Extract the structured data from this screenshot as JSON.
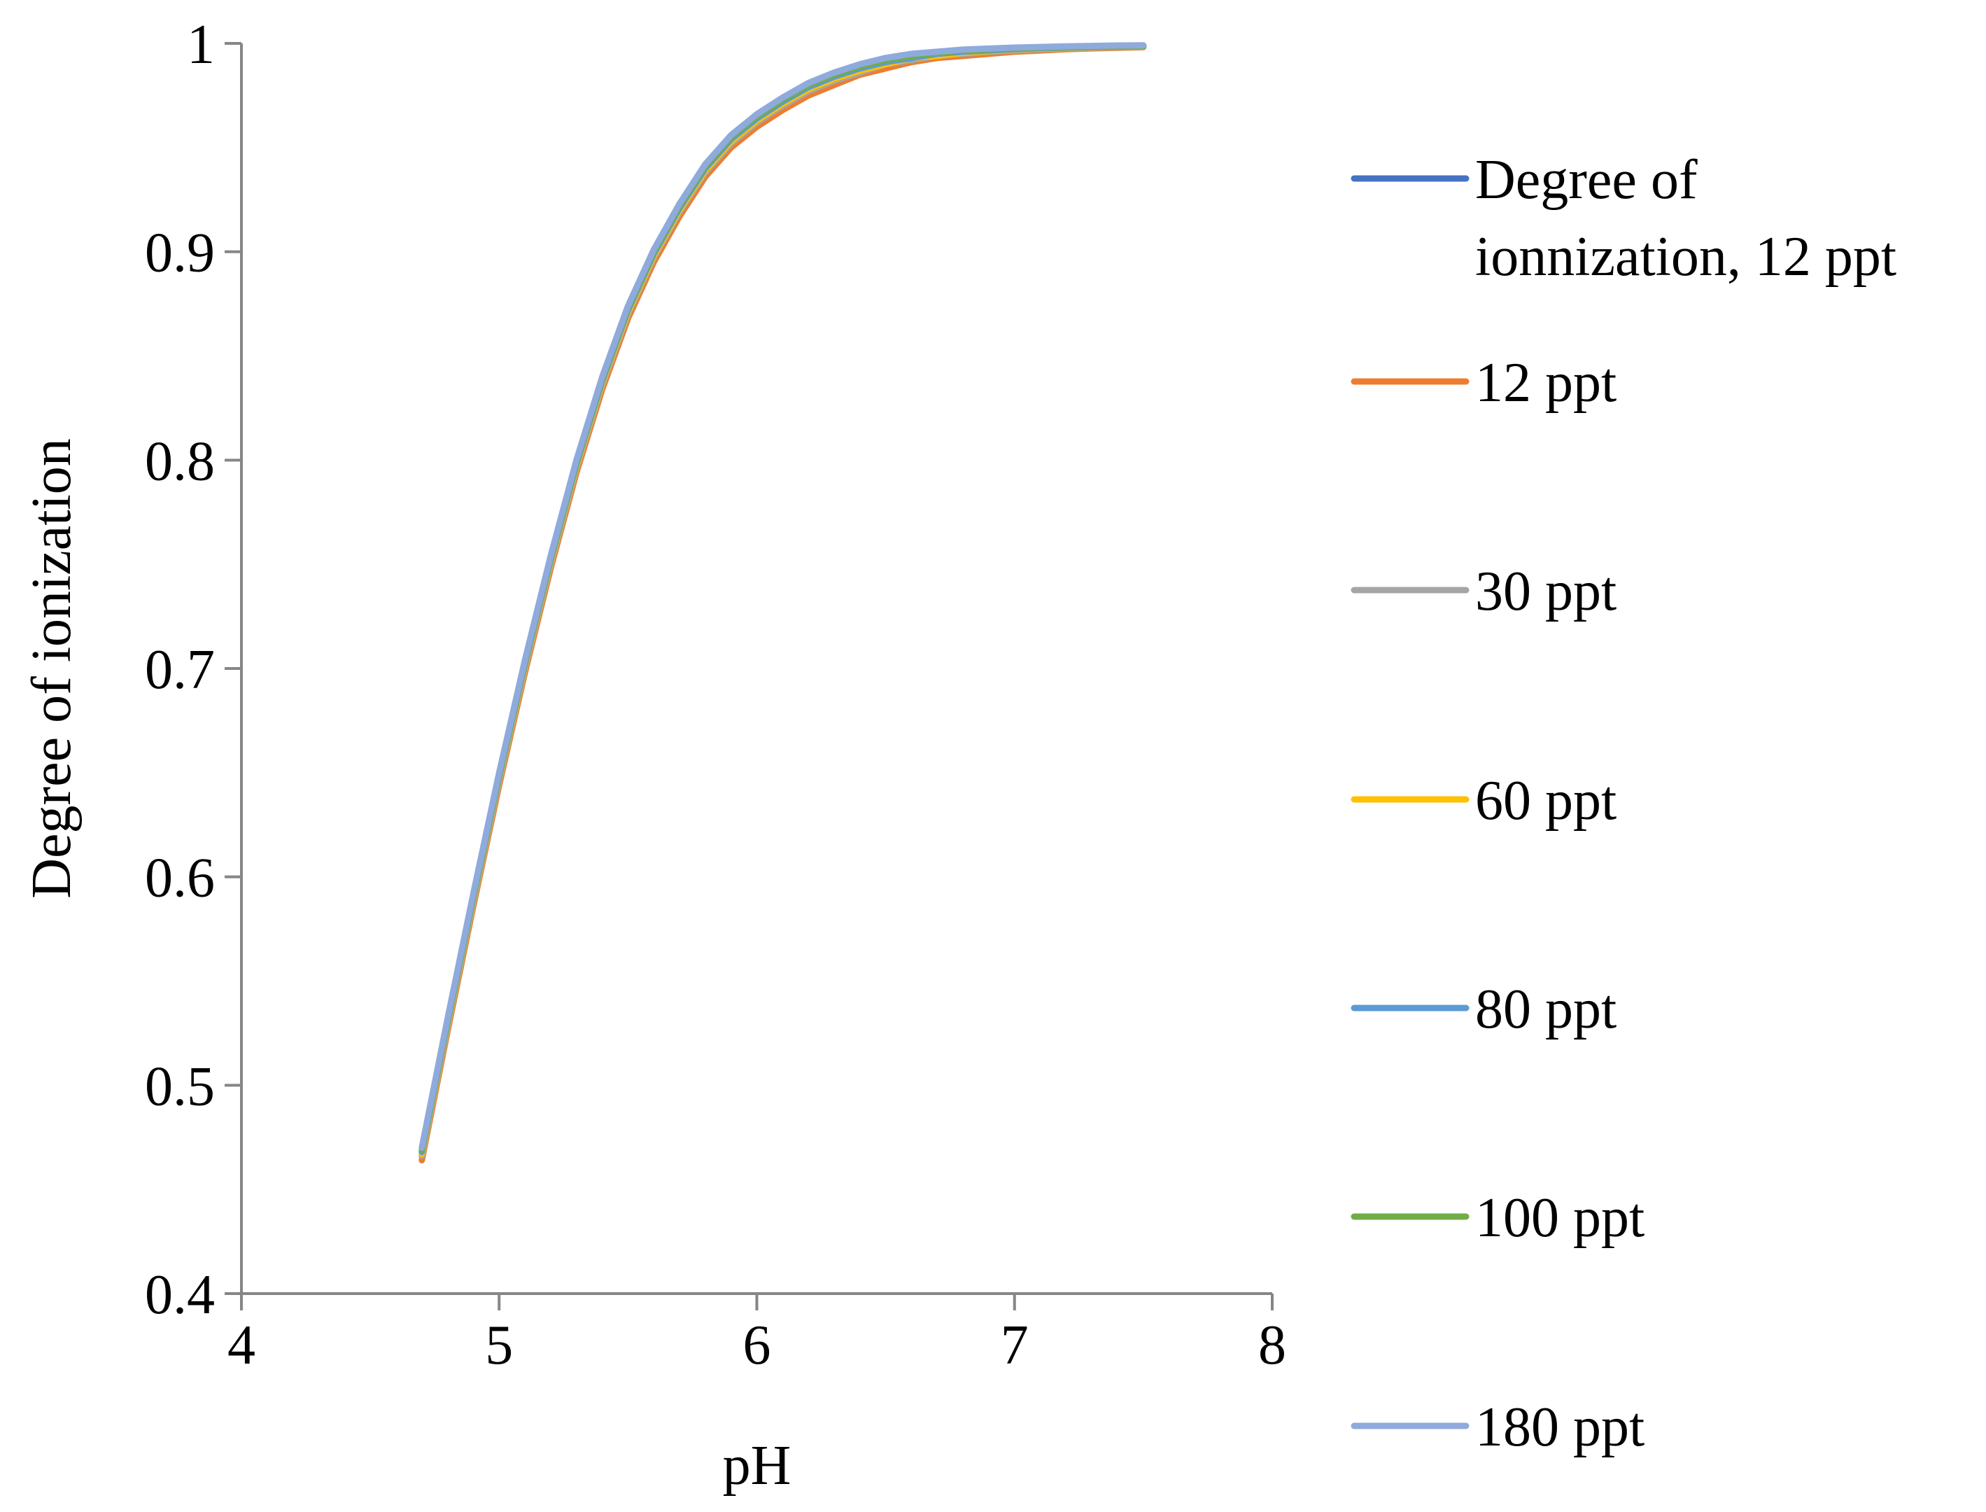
{
  "chart_data": {
    "type": "line",
    "title": "",
    "xlabel": "pH",
    "ylabel": "Degree of ionization",
    "xlim": [
      4,
      8
    ],
    "ylim": [
      0.4,
      1
    ],
    "xticks": [
      4,
      5,
      6,
      7,
      8
    ],
    "yticks": [
      0.4,
      0.5,
      0.6,
      0.7,
      0.8,
      0.9,
      1
    ],
    "ytick_labels": [
      "0.4",
      "0.5",
      "0.6",
      "0.7",
      "0.8",
      "0.9",
      "1"
    ],
    "xtick_labels": [
      "4",
      "5",
      "6",
      "7",
      "8"
    ],
    "grid": false,
    "legend_position": "right",
    "x": [
      4.7,
      4.8,
      4.9,
      5.0,
      5.1,
      5.2,
      5.3,
      5.4,
      5.5,
      5.6,
      5.7,
      5.8,
      5.9,
      6.0,
      6.1,
      6.2,
      6.3,
      6.4,
      6.5,
      6.6,
      6.7,
      6.8,
      6.9,
      7.0,
      7.1,
      7.2,
      7.3,
      7.4,
      7.5
    ],
    "series": [
      {
        "name": "Degree of ionnization, 12 ppt",
        "legend_lines": [
          "Degree of",
          "ionnization, 12 ppt"
        ],
        "color": "#4472C4",
        "values": [
          0.468,
          0.53,
          0.59,
          0.648,
          0.702,
          0.752,
          0.798,
          0.838,
          0.872,
          0.899,
          0.921,
          0.94,
          0.954,
          0.964,
          0.972,
          0.979,
          0.984,
          0.988,
          0.991,
          0.993,
          0.995,
          0.996,
          0.9966,
          0.9972,
          0.9977,
          0.998,
          0.9983,
          0.9985,
          0.9987
        ]
      },
      {
        "name": "12 ppt",
        "legend_lines": [
          "12 ppt"
        ],
        "color": "#ED7D31",
        "values": [
          0.464,
          0.526,
          0.586,
          0.644,
          0.698,
          0.748,
          0.794,
          0.834,
          0.868,
          0.895,
          0.917,
          0.936,
          0.95,
          0.96,
          0.968,
          0.975,
          0.98,
          0.985,
          0.988,
          0.991,
          0.993,
          0.994,
          0.995,
          0.996,
          0.9966,
          0.9972,
          0.9976,
          0.9979,
          0.9982
        ]
      },
      {
        "name": "30 ppt",
        "legend_lines": [
          "30 ppt"
        ],
        "color": "#A5A5A5",
        "values": [
          0.466,
          0.528,
          0.588,
          0.646,
          0.7,
          0.75,
          0.796,
          0.836,
          0.87,
          0.897,
          0.919,
          0.938,
          0.952,
          0.962,
          0.97,
          0.977,
          0.982,
          0.986,
          0.99,
          0.992,
          0.994,
          0.995,
          0.996,
          0.9966,
          0.9972,
          0.9976,
          0.998,
          0.9982,
          0.9985
        ]
      },
      {
        "name": "60 ppt",
        "legend_lines": [
          "60 ppt"
        ],
        "color": "#FFC000",
        "values": [
          0.467,
          0.529,
          0.589,
          0.647,
          0.701,
          0.751,
          0.797,
          0.837,
          0.871,
          0.898,
          0.92,
          0.939,
          0.953,
          0.963,
          0.971,
          0.978,
          0.983,
          0.987,
          0.99,
          0.993,
          0.994,
          0.9955,
          0.9963,
          0.997,
          0.9975,
          0.9978,
          0.9981,
          0.9984,
          0.9986
        ]
      },
      {
        "name": "80 ppt",
        "legend_lines": [
          "80 ppt"
        ],
        "color": "#5B9BD5",
        "values": [
          0.468,
          0.53,
          0.59,
          0.648,
          0.702,
          0.752,
          0.798,
          0.838,
          0.872,
          0.899,
          0.921,
          0.94,
          0.954,
          0.964,
          0.972,
          0.979,
          0.984,
          0.988,
          0.991,
          0.993,
          0.995,
          0.996,
          0.9966,
          0.9972,
          0.9977,
          0.998,
          0.9983,
          0.9985,
          0.9987
        ]
      },
      {
        "name": "100 ppt",
        "legend_lines": [
          "100 ppt"
        ],
        "color": "#70AD47",
        "values": [
          0.469,
          0.531,
          0.591,
          0.649,
          0.703,
          0.753,
          0.799,
          0.839,
          0.873,
          0.9,
          0.922,
          0.941,
          0.955,
          0.965,
          0.973,
          0.98,
          0.985,
          0.989,
          0.992,
          0.994,
          0.9955,
          0.9965,
          0.997,
          0.9975,
          0.998,
          0.9982,
          0.9985,
          0.9987,
          0.9988
        ]
      },
      {
        "name": "180 ppt",
        "legend_lines": [
          "180 ppt"
        ],
        "color": "#8FAADC",
        "values": [
          0.47,
          0.532,
          0.592,
          0.65,
          0.704,
          0.754,
          0.8,
          0.84,
          0.874,
          0.901,
          0.923,
          0.942,
          0.956,
          0.966,
          0.974,
          0.981,
          0.986,
          0.99,
          0.993,
          0.995,
          0.996,
          0.997,
          0.9975,
          0.998,
          0.9983,
          0.9986,
          0.9988,
          0.999,
          0.9991
        ]
      }
    ]
  }
}
